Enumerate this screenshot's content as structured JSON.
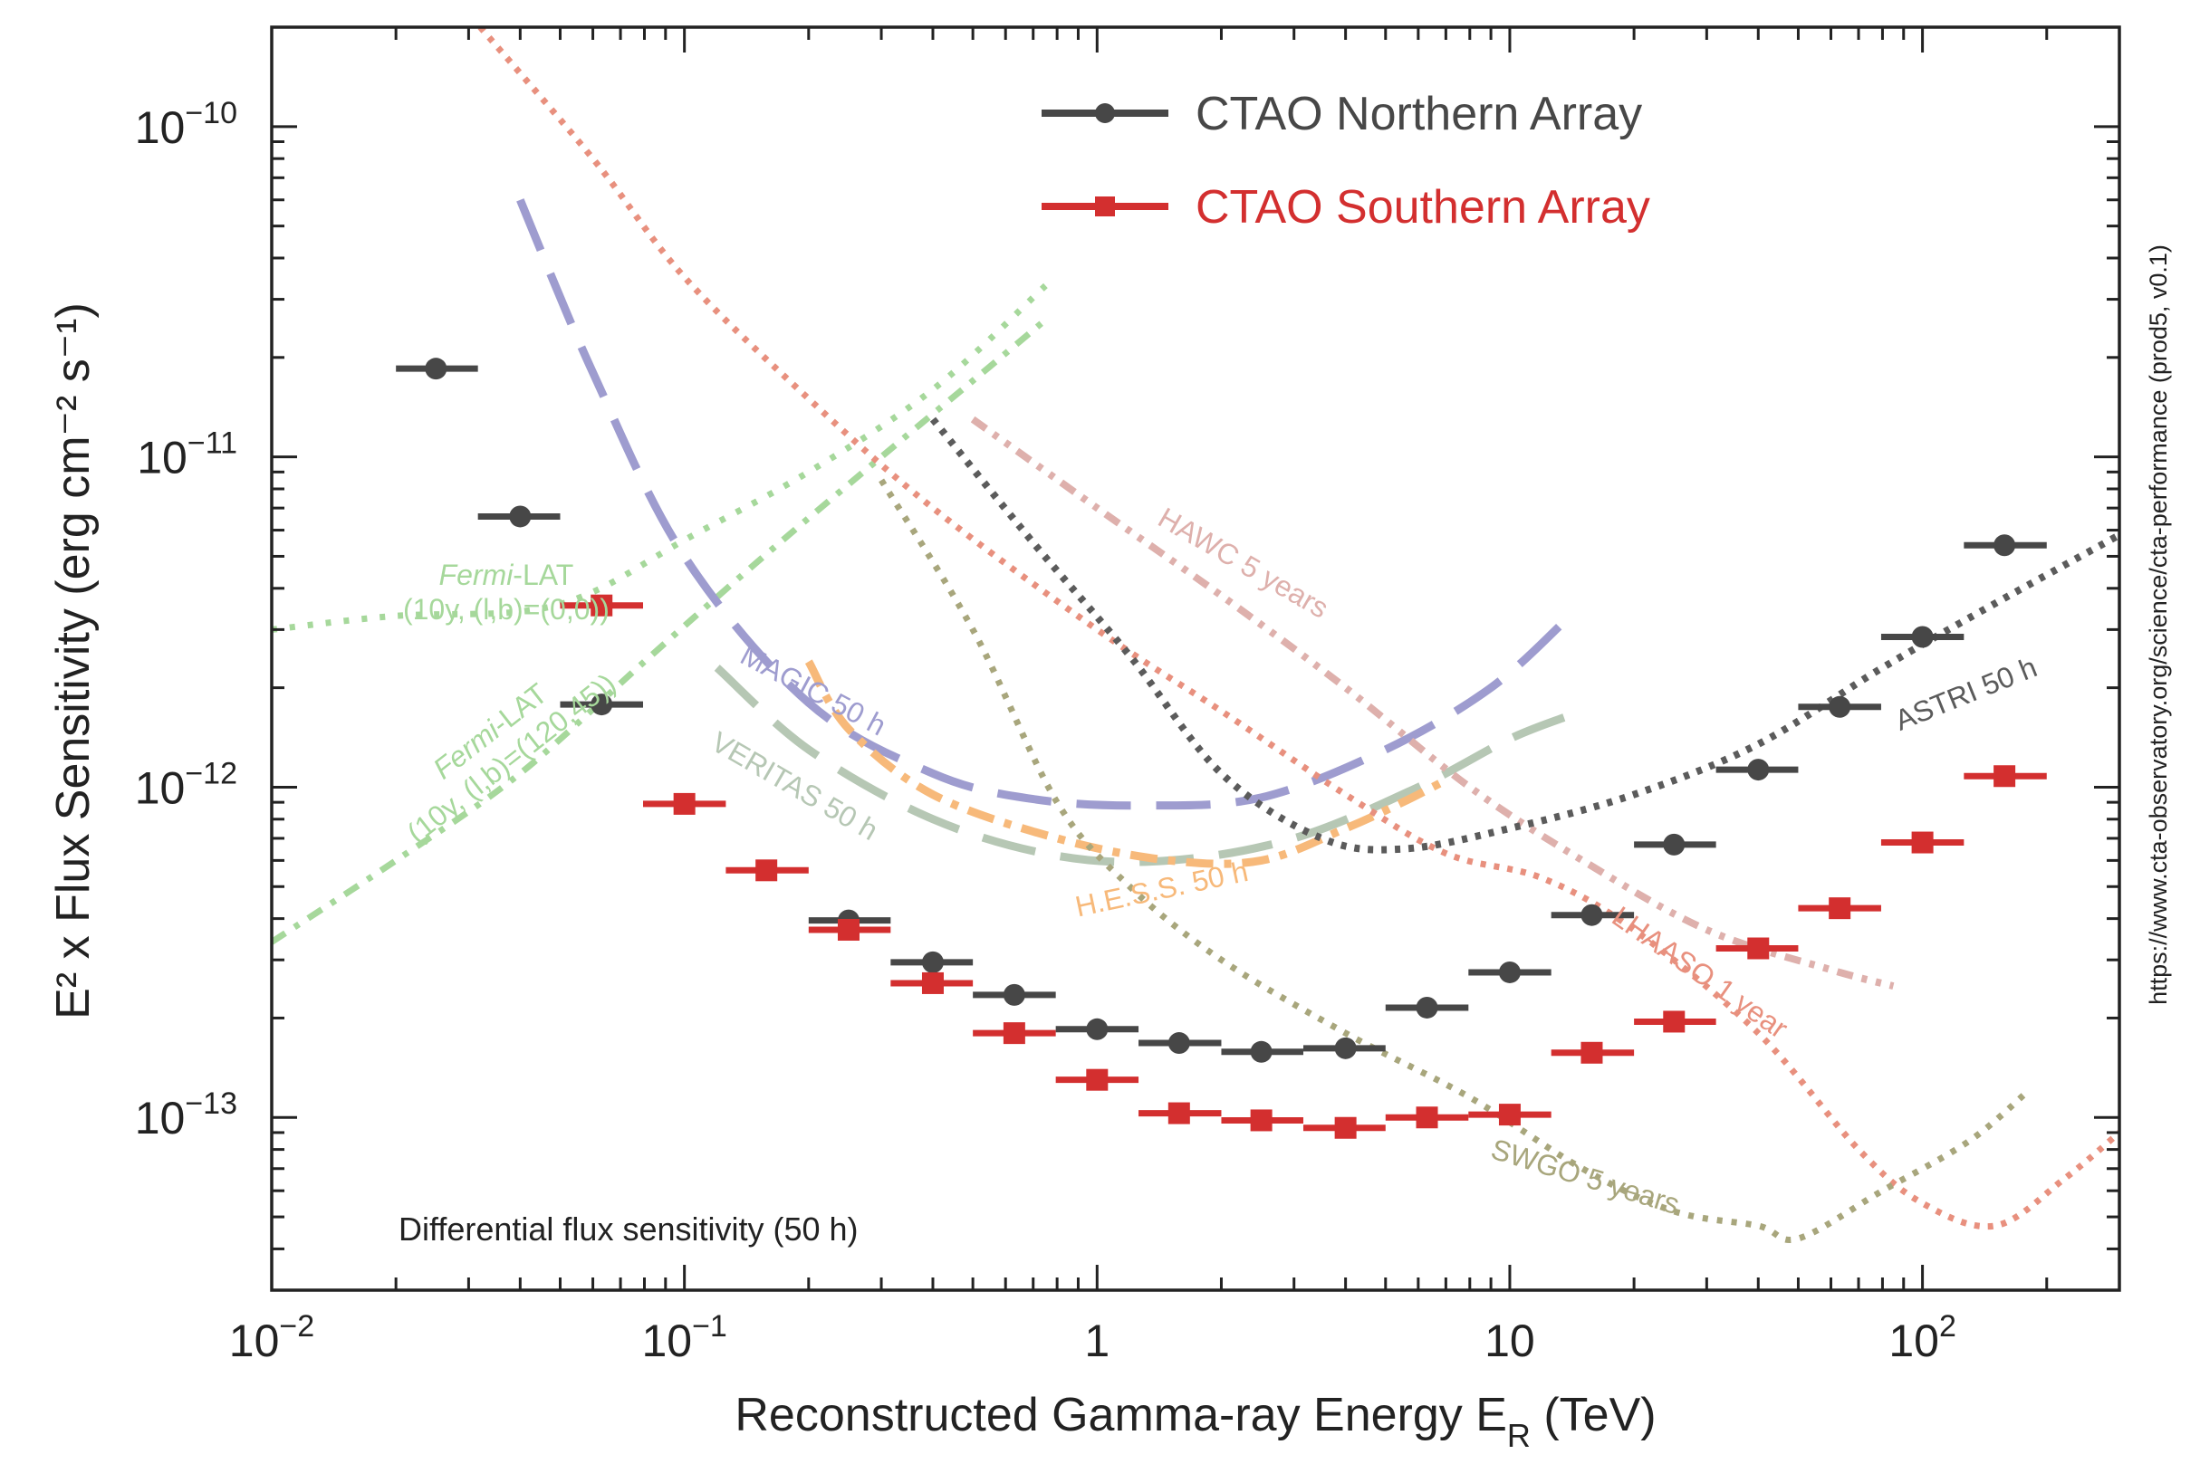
{
  "chart_data": {
    "type": "scatter",
    "title": "",
    "xlabel": "Reconstructed Gamma-ray Energy E",
    "xlabel_sub": "R",
    "xlabel_unit": " (TeV)",
    "ylabel": "E² x Flux Sensitivity (erg cm⁻² s⁻¹)",
    "xscale": "log",
    "yscale": "log",
    "xlim": [
      0.01,
      300
    ],
    "ylim": [
      3e-14,
      2e-10
    ],
    "annotation": "Differential flux sensitivity (50 h)",
    "side_label": "https://www.cta-observatory.org/science/cta-performance (prod5, v0.1)",
    "x_ticks": [
      {
        "value": 0.01,
        "base": "10",
        "exp": "−2"
      },
      {
        "value": 0.1,
        "base": "10",
        "exp": "−1"
      },
      {
        "value": 1,
        "base": "1",
        "exp": ""
      },
      {
        "value": 10,
        "base": "10",
        "exp": ""
      },
      {
        "value": 100,
        "base": "10",
        "exp": "2"
      }
    ],
    "y_ticks": [
      {
        "value": 1e-10,
        "base": "10",
        "exp": "−10"
      },
      {
        "value": 1e-11,
        "base": "10",
        "exp": "−11"
      },
      {
        "value": 1e-12,
        "base": "10",
        "exp": "−12"
      },
      {
        "value": 1e-13,
        "base": "10",
        "exp": "−13"
      }
    ],
    "series": [
      {
        "name": "CTAO Northern Array",
        "color": "#474747",
        "marker": "circle",
        "points": [
          {
            "x": 0.025,
            "y": 1.85e-11,
            "xlo": 0.02,
            "xhi": 0.0316
          },
          {
            "x": 0.04,
            "y": 6.6e-12,
            "xlo": 0.0316,
            "xhi": 0.05
          },
          {
            "x": 0.063,
            "y": 1.78e-12,
            "xlo": 0.05,
            "xhi": 0.0794
          },
          {
            "x": 0.25,
            "y": 3.95e-13,
            "xlo": 0.2,
            "xhi": 0.316
          },
          {
            "x": 0.4,
            "y": 2.95e-13,
            "xlo": 0.316,
            "xhi": 0.5
          },
          {
            "x": 0.63,
            "y": 2.35e-13,
            "xlo": 0.5,
            "xhi": 0.794
          },
          {
            "x": 1.0,
            "y": 1.85e-13,
            "xlo": 0.794,
            "xhi": 1.26
          },
          {
            "x": 1.58,
            "y": 1.68e-13,
            "xlo": 1.26,
            "xhi": 2.0
          },
          {
            "x": 2.5,
            "y": 1.58e-13,
            "xlo": 2.0,
            "xhi": 3.16
          },
          {
            "x": 4.0,
            "y": 1.62e-13,
            "xlo": 3.16,
            "xhi": 5.0
          },
          {
            "x": 6.3,
            "y": 2.15e-13,
            "xlo": 5.0,
            "xhi": 7.94
          },
          {
            "x": 10.0,
            "y": 2.75e-13,
            "xlo": 7.94,
            "xhi": 12.6
          },
          {
            "x": 15.8,
            "y": 4.1e-13,
            "xlo": 12.6,
            "xhi": 20.0
          },
          {
            "x": 25.0,
            "y": 6.7e-13,
            "xlo": 20.0,
            "xhi": 31.6
          },
          {
            "x": 40.0,
            "y": 1.13e-12,
            "xlo": 31.6,
            "xhi": 50.0
          },
          {
            "x": 63.0,
            "y": 1.75e-12,
            "xlo": 50.0,
            "xhi": 79.4
          },
          {
            "x": 100.0,
            "y": 2.85e-12,
            "xlo": 79.4,
            "xhi": 126.0
          },
          {
            "x": 158.0,
            "y": 5.4e-12,
            "xlo": 126.0,
            "xhi": 200.0
          }
        ]
      },
      {
        "name": "CTAO Southern Array",
        "color": "#d32f2f",
        "marker": "square",
        "points": [
          {
            "x": 0.063,
            "y": 3.55e-12,
            "xlo": 0.05,
            "xhi": 0.0794
          },
          {
            "x": 0.1,
            "y": 8.9e-13,
            "xlo": 0.0794,
            "xhi": 0.126
          },
          {
            "x": 0.158,
            "y": 5.6e-13,
            "xlo": 0.126,
            "xhi": 0.2
          },
          {
            "x": 0.25,
            "y": 3.7e-13,
            "xlo": 0.2,
            "xhi": 0.316
          },
          {
            "x": 0.4,
            "y": 2.55e-13,
            "xlo": 0.316,
            "xhi": 0.5
          },
          {
            "x": 0.63,
            "y": 1.8e-13,
            "xlo": 0.5,
            "xhi": 0.794
          },
          {
            "x": 1.0,
            "y": 1.3e-13,
            "xlo": 0.794,
            "xhi": 1.26
          },
          {
            "x": 1.58,
            "y": 1.03e-13,
            "xlo": 1.26,
            "xhi": 2.0
          },
          {
            "x": 2.5,
            "y": 9.8e-14,
            "xlo": 2.0,
            "xhi": 3.16
          },
          {
            "x": 4.0,
            "y": 9.3e-14,
            "xlo": 3.16,
            "xhi": 5.0
          },
          {
            "x": 6.3,
            "y": 1e-13,
            "xlo": 5.0,
            "xhi": 7.94
          },
          {
            "x": 10.0,
            "y": 1.02e-13,
            "xlo": 7.94,
            "xhi": 12.6
          },
          {
            "x": 15.8,
            "y": 1.57e-13,
            "xlo": 12.6,
            "xhi": 20.0
          },
          {
            "x": 25.0,
            "y": 1.95e-13,
            "xlo": 20.0,
            "xhi": 31.6
          },
          {
            "x": 40.0,
            "y": 3.25e-13,
            "xlo": 31.6,
            "xhi": 50.0
          },
          {
            "x": 63.0,
            "y": 4.3e-13,
            "xlo": 50.0,
            "xhi": 79.4
          },
          {
            "x": 100.0,
            "y": 6.8e-13,
            "xlo": 79.4,
            "xhi": 126.0
          },
          {
            "x": 158.0,
            "y": 1.08e-12,
            "xlo": 126.0,
            "xhi": 200.0
          }
        ]
      }
    ],
    "curves": [
      {
        "id": "fermi-lat-galactic",
        "label": "Fermi-LAT\n(10y, (l,b)=(0,0))",
        "label_x": 0.037,
        "label_y": 4.1e-12,
        "label_angle": 0,
        "color": "#a6d89b",
        "dash": "6 14",
        "width": 7,
        "points": [
          [
            0.01,
            3e-12
          ],
          [
            0.02,
            3.3e-12
          ],
          [
            0.04,
            3.4e-12
          ],
          [
            0.06,
            3.9e-12
          ],
          [
            0.1,
            5.6e-12
          ],
          [
            0.2,
            9e-12
          ],
          [
            0.4,
            1.6e-11
          ],
          [
            0.75,
            3.3e-11
          ]
        ]
      },
      {
        "id": "fermi-lat-high-latitude",
        "label": "Fermi-LAT\n(10y, (l,b)=(120,45))",
        "label_x": 0.035,
        "label_y": 1.4e-12,
        "label_angle": -38,
        "color": "#a6d89b",
        "dash": "18 12 6 12",
        "width": 7,
        "points": [
          [
            0.01,
            3.4e-13
          ],
          [
            0.02,
            6e-13
          ],
          [
            0.04,
            1.1e-12
          ],
          [
            0.08,
            2.4e-12
          ],
          [
            0.15,
            4.8e-12
          ],
          [
            0.3,
            1e-11
          ],
          [
            0.5,
            1.7e-11
          ],
          [
            0.75,
            2.6e-11
          ]
        ]
      },
      {
        "id": "magic",
        "label": "MAGIC 50 h",
        "label_x": 0.2,
        "label_y": 1.85e-12,
        "label_angle": 28,
        "color": "#9e9ccf",
        "dash": "60 28",
        "width": 9,
        "points": [
          [
            0.04,
            6e-11
          ],
          [
            0.06,
            1.8e-11
          ],
          [
            0.1,
            5e-12
          ],
          [
            0.2,
            1.8e-12
          ],
          [
            0.4,
            1.1e-12
          ],
          [
            0.7,
            9.2e-13
          ],
          [
            1.3,
            8.8e-13
          ],
          [
            2.5,
            9.3e-13
          ],
          [
            5.0,
            1.3e-12
          ],
          [
            9.0,
            2e-12
          ],
          [
            14.0,
            3.3e-12
          ]
        ]
      },
      {
        "id": "veritas",
        "label": "VERITAS 50 h",
        "label_x": 0.18,
        "label_y": 9.5e-13,
        "label_angle": 30,
        "color": "#b6c7b4",
        "dash": "60 28",
        "width": 9,
        "points": [
          [
            0.12,
            2.3e-12
          ],
          [
            0.2,
            1.3e-12
          ],
          [
            0.4,
            8e-13
          ],
          [
            0.8,
            6.2e-13
          ],
          [
            1.5,
            6e-13
          ],
          [
            3.0,
            7e-13
          ],
          [
            6.0,
            1e-12
          ],
          [
            10.0,
            1.4e-12
          ],
          [
            14.0,
            1.65e-12
          ]
        ]
      },
      {
        "id": "hess",
        "label": "H.E.S.S. 50 h",
        "label_x": 1.45,
        "label_y": 4.6e-13,
        "label_angle": -12,
        "color": "#f7b97a",
        "dash": "30 12 8 12",
        "width": 9,
        "points": [
          [
            0.2,
            2.4e-12
          ],
          [
            0.25,
            1.5e-12
          ],
          [
            0.4,
            9.5e-13
          ],
          [
            0.8,
            7e-13
          ],
          [
            1.5,
            6e-13
          ],
          [
            2.5,
            6e-13
          ],
          [
            4.0,
            7.5e-13
          ],
          [
            5.5,
            9e-13
          ],
          [
            7.0,
            1.05e-12
          ]
        ]
      },
      {
        "id": "hawc",
        "label": "HAWC 5 years",
        "label_x": 2.2,
        "label_y": 4.5e-12,
        "label_angle": 30,
        "color": "#deb0ac",
        "dash": "18 10 6 10 6 10",
        "width": 8,
        "points": [
          [
            0.5,
            1.3e-11
          ],
          [
            1.0,
            7e-12
          ],
          [
            2.0,
            3.8e-12
          ],
          [
            4.0,
            2e-12
          ],
          [
            8.0,
            1e-12
          ],
          [
            15.0,
            6e-13
          ],
          [
            30.0,
            3.7e-13
          ],
          [
            60.0,
            2.8e-13
          ],
          [
            85.0,
            2.5e-13
          ]
        ]
      },
      {
        "id": "lhaaso",
        "label": "LHAASO 1 year",
        "label_x": 28.0,
        "label_y": 2.6e-13,
        "label_angle": 35,
        "color": "#e8907e",
        "dash": "6 9",
        "width": 7,
        "points": [
          [
            0.032,
            2e-10
          ],
          [
            0.06,
            8e-11
          ],
          [
            0.1,
            3.5e-11
          ],
          [
            0.2,
            1.5e-11
          ],
          [
            0.4,
            7e-12
          ],
          [
            1.0,
            3e-12
          ],
          [
            2.0,
            1.7e-12
          ],
          [
            4.0,
            9.5e-13
          ],
          [
            7.0,
            6.3e-13
          ],
          [
            12.0,
            5.3e-13
          ],
          [
            20.0,
            3.7e-13
          ],
          [
            40.0,
            1.8e-13
          ],
          [
            70.0,
            8e-14
          ],
          [
            100.0,
            5.5e-14
          ],
          [
            150.0,
            4.7e-14
          ],
          [
            220.0,
            6.5e-14
          ],
          [
            300.0,
            9e-14
          ]
        ]
      },
      {
        "id": "swgo",
        "label": "SWGO 5 years",
        "label_x": 15.0,
        "label_y": 6.2e-14,
        "label_angle": 17,
        "color": "#a8a67c",
        "dash": "6 10",
        "width": 7,
        "points": [
          [
            0.3,
            8.5e-12
          ],
          [
            0.5,
            3e-12
          ],
          [
            0.8,
            9e-13
          ],
          [
            1.2,
            5e-13
          ],
          [
            2.0,
            3e-13
          ],
          [
            4.0,
            1.8e-13
          ],
          [
            8.0,
            1.15e-13
          ],
          [
            15.0,
            7e-14
          ],
          [
            25.0,
            5.2e-14
          ],
          [
            40.0,
            4.7e-14
          ],
          [
            50.0,
            4.3e-14
          ],
          [
            80.0,
            6e-14
          ],
          [
            130.0,
            8.5e-14
          ],
          [
            180.0,
            1.2e-13
          ]
        ]
      },
      {
        "id": "astri",
        "label": "ASTRI 50 h",
        "label_x": 130.0,
        "label_y": 1.8e-12,
        "label_angle": -22,
        "color": "#5b5b5b",
        "dash": "6 9",
        "width": 8,
        "points": [
          [
            0.4,
            1.3e-11
          ],
          [
            0.7,
            5.5e-12
          ],
          [
            1.2,
            2.5e-12
          ],
          [
            2.0,
            1.1e-12
          ],
          [
            3.5,
            7e-13
          ],
          [
            5.5,
            6.5e-13
          ],
          [
            10.0,
            7.5e-13
          ],
          [
            20.0,
            9.5e-13
          ],
          [
            40.0,
            1.35e-12
          ],
          [
            80.0,
            2.3e-12
          ],
          [
            150.0,
            3.6e-12
          ],
          [
            300.0,
            5.8e-12
          ]
        ]
      }
    ]
  }
}
